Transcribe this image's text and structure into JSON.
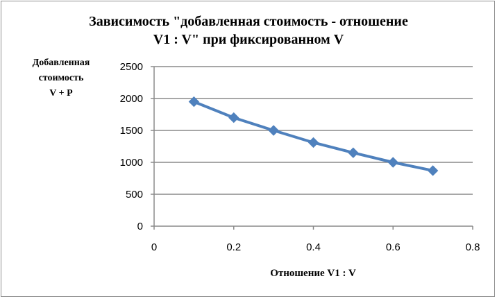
{
  "chart_data": {
    "type": "line",
    "title": "Зависимость \"добавленная стоимость - отношение V1 : V\" при фиксированном V",
    "title_lines": [
      "Зависимость \"добавленная стоимость - отношение",
      "V1 : V\" при фиксированном V"
    ],
    "ylabel": "Добавленная стоимость V + P",
    "ylabel_lines": [
      "Добавленная",
      "стоимость",
      "V + P"
    ],
    "xlabel": "Отношение V1 : V",
    "xlim": [
      0,
      0.8
    ],
    "ylim": [
      0,
      2500
    ],
    "x_ticks": [
      "0",
      "0.2",
      "0.4",
      "0.6",
      "0.8"
    ],
    "x_tick_values": [
      0,
      0.2,
      0.4,
      0.6,
      0.8
    ],
    "y_ticks": [
      "0",
      "500",
      "1000",
      "1500",
      "2000",
      "2500"
    ],
    "y_tick_values": [
      0,
      500,
      1000,
      1500,
      2000,
      2500
    ],
    "grid": "horizontal",
    "legend": "none",
    "marker": "diamond",
    "series": [
      {
        "x": [
          0.1,
          0.2,
          0.3,
          0.4,
          0.5,
          0.6,
          0.7
        ],
        "values": [
          1950,
          1700,
          1500,
          1310,
          1150,
          1000,
          870
        ],
        "color": "#4f81bd"
      }
    ]
  }
}
